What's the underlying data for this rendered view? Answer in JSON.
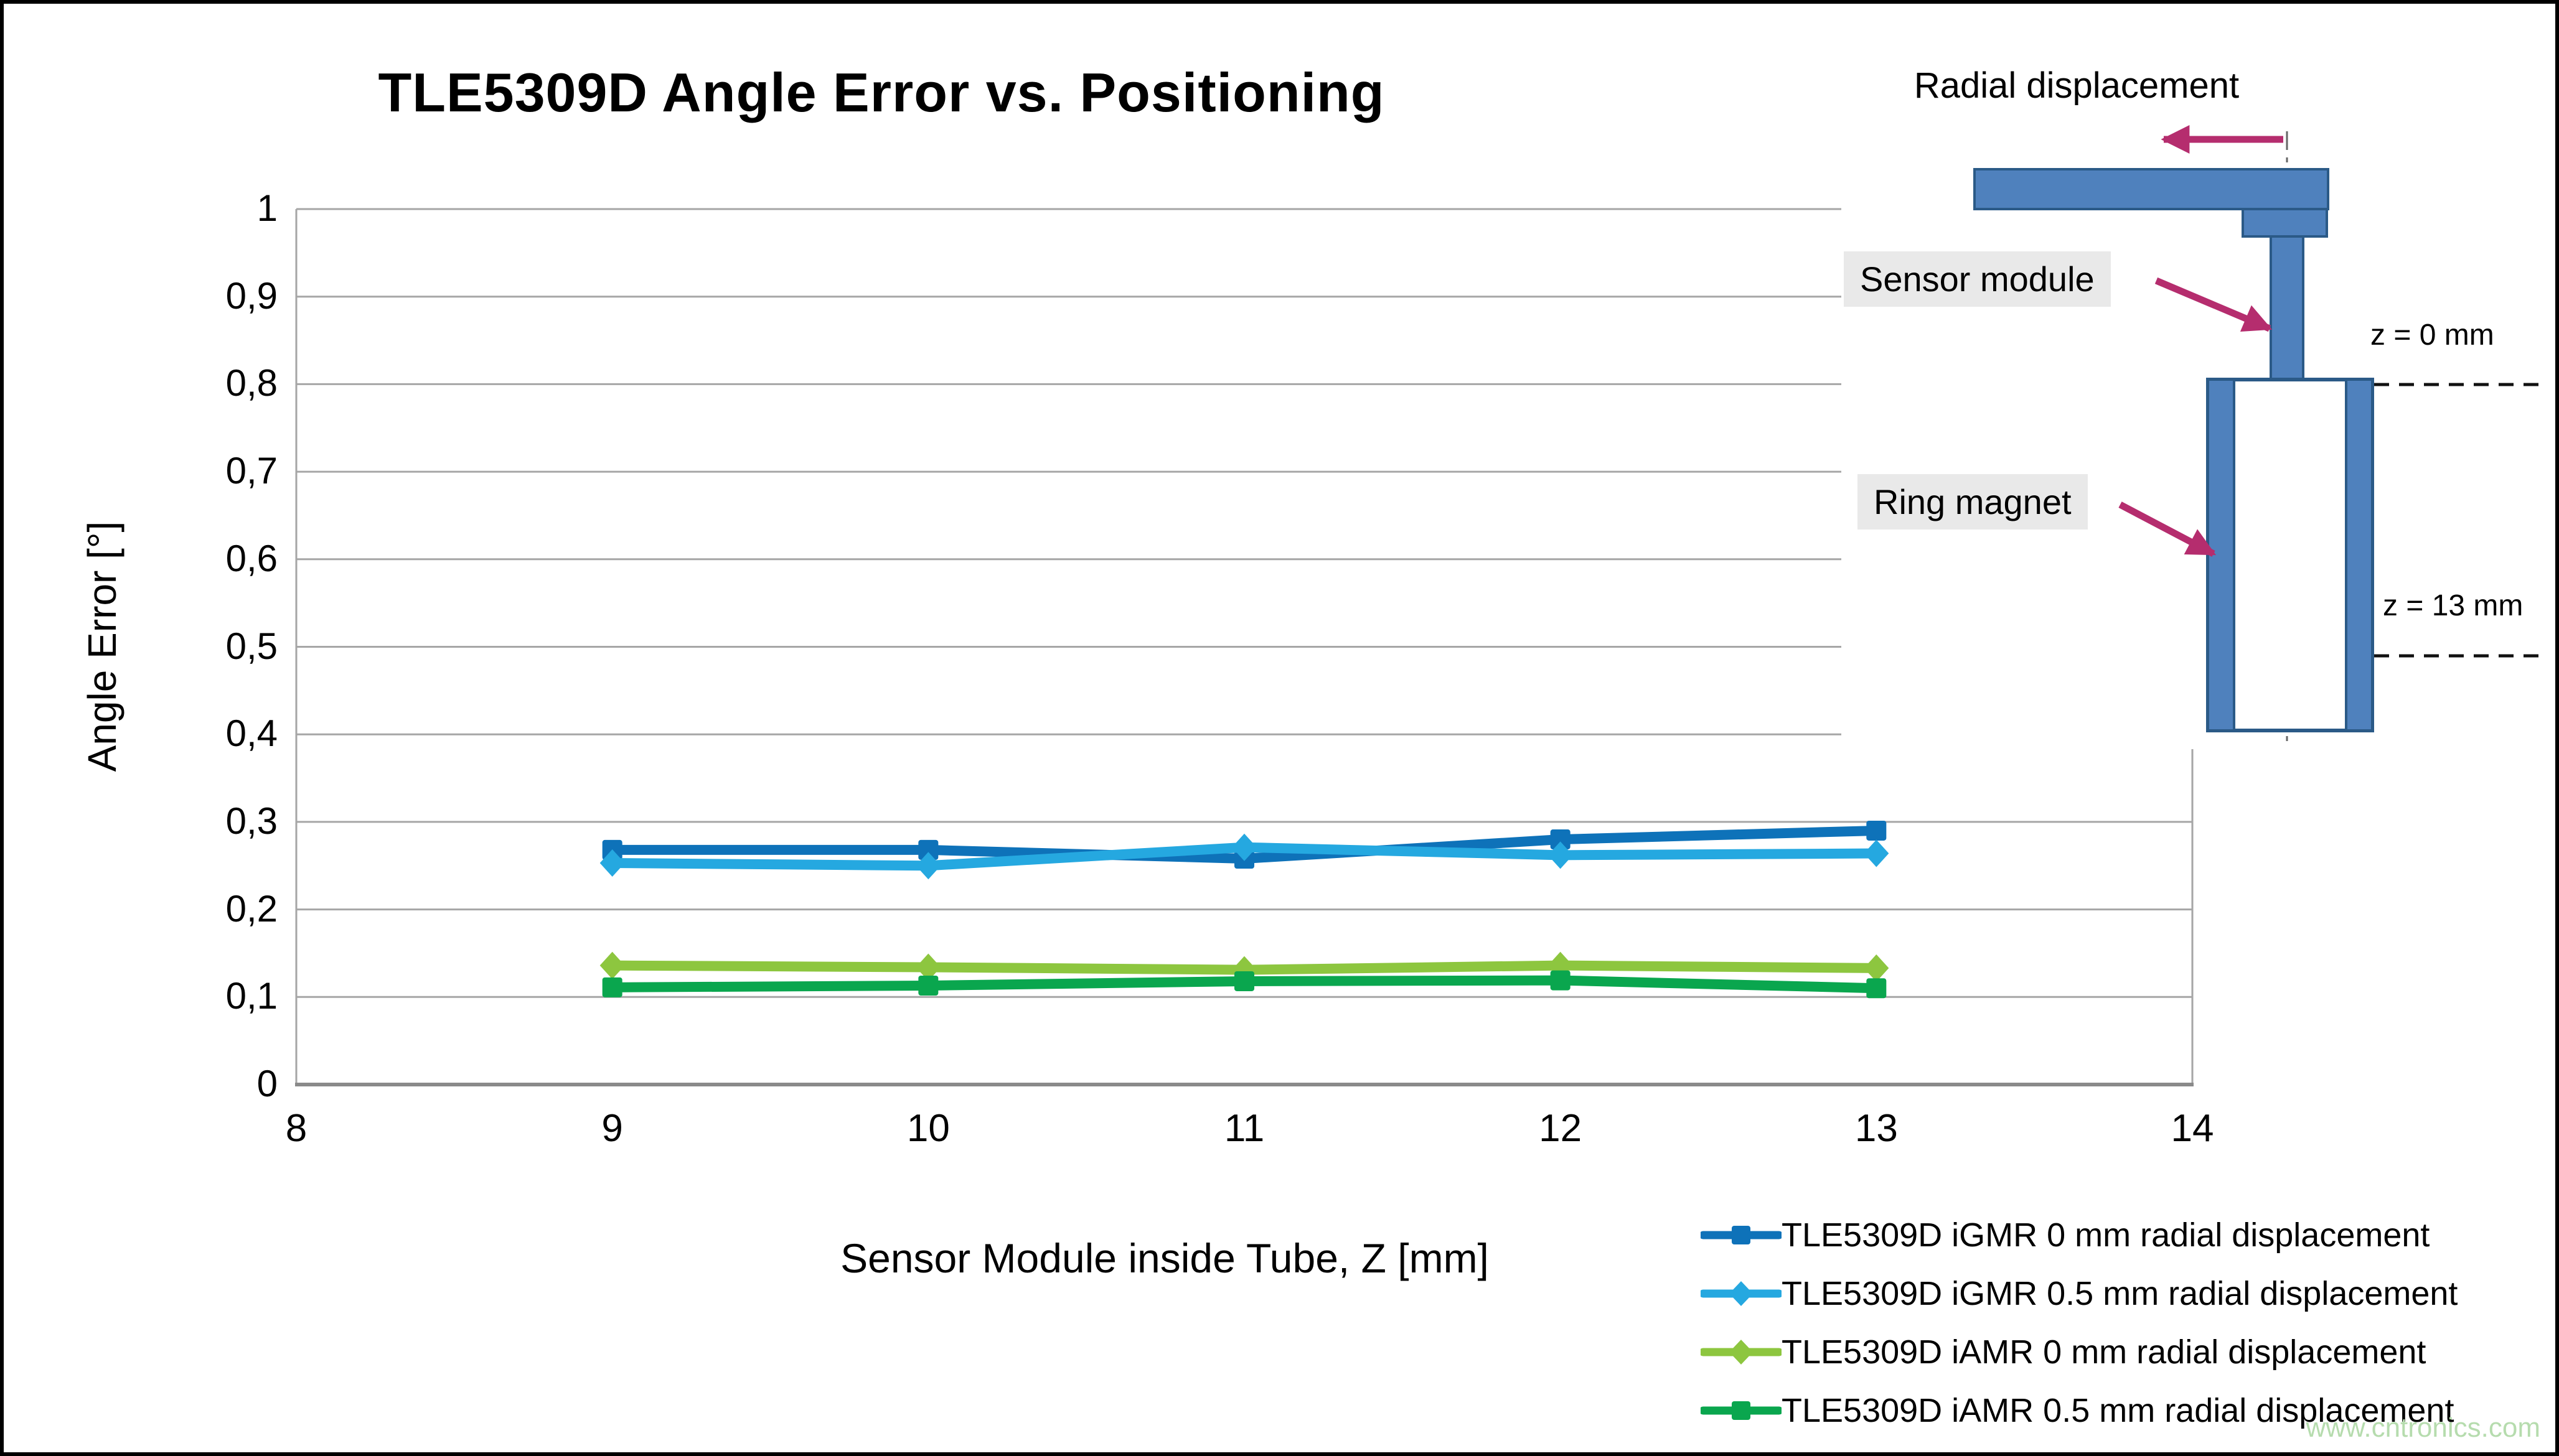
{
  "title": "TLE5309D Angle Error vs. Positioning",
  "watermark": "www.cntronics.com",
  "chart_data": {
    "type": "line",
    "title": "TLE5309D Angle Error vs. Positioning",
    "xlabel": "Sensor Module inside Tube, Z [mm]",
    "ylabel": "Angle Error [°]",
    "xlim": [
      8,
      14
    ],
    "ylim": [
      0,
      1
    ],
    "x_ticks": [
      "8",
      "9",
      "10",
      "11",
      "12",
      "13",
      "14"
    ],
    "y_ticks": [
      "0",
      "0,1",
      "0,2",
      "0,3",
      "0,4",
      "0,5",
      "0,6",
      "0,7",
      "0,8",
      "0,9",
      "1"
    ],
    "grid": "horizontal",
    "legend_position": "bottom-right",
    "x": [
      9,
      10,
      11,
      12,
      13
    ],
    "series": [
      {
        "name": "TLE5309D iGMR 0 mm radial displacement",
        "color": "#0e72b9",
        "marker": "square",
        "values": [
          0.268,
          0.268,
          0.258,
          0.28,
          0.29
        ]
      },
      {
        "name": "TLE5309D iGMR 0.5 mm radial displacement",
        "color": "#25a8e0",
        "marker": "diamond",
        "values": [
          0.253,
          0.25,
          0.271,
          0.262,
          0.264
        ]
      },
      {
        "name": "TLE5309D iAMR 0 mm radial displacement",
        "color": "#8dc63f",
        "marker": "diamond",
        "values": [
          0.136,
          0.134,
          0.131,
          0.136,
          0.133
        ]
      },
      {
        "name": "TLE5309D iAMR 0.5 mm radial displacement",
        "color": "#0aa64e",
        "marker": "square",
        "values": [
          0.111,
          0.113,
          0.118,
          0.119,
          0.11
        ]
      }
    ]
  },
  "diagram": {
    "radial_label": "Radial displacement",
    "sensor_label": "Sensor module",
    "magnet_label": "Ring magnet",
    "z0_label": "z = 0 mm",
    "z13_label": "z = 13 mm"
  },
  "colors": {
    "grid": "#a6a6a6",
    "axis": "#8a8a8a",
    "arrow": "#b52d6e",
    "shape-fill": "#4f81bd",
    "shape-border": "#2b5a87",
    "label-bg": "#e9e9e9",
    "watermark": "#b6dcae"
  }
}
